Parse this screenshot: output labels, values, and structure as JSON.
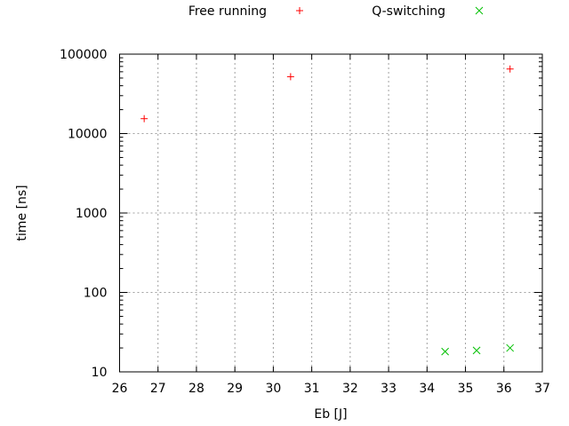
{
  "chart_data": {
    "type": "scatter",
    "title": "",
    "xlabel": "Eb [J]",
    "ylabel": "time [ns]",
    "xlim": [
      26,
      37
    ],
    "ylim": [
      10,
      100000
    ],
    "yscale": "log",
    "grid": true,
    "legend_placement": "top",
    "x_ticks": [
      "26",
      "27",
      "28",
      "29",
      "30",
      "31",
      "32",
      "33",
      "34",
      "35",
      "36",
      "37"
    ],
    "y_ticks": [
      "10",
      "100",
      "1000",
      "10000",
      "100000"
    ],
    "series": [
      {
        "name": "Free running",
        "marker": "plus",
        "color": "#ff0000",
        "points": [
          [
            26.64,
            15400
          ],
          [
            30.45,
            52000
          ],
          [
            36.16,
            65000
          ]
        ]
      },
      {
        "name": "Q-switching",
        "marker": "cross",
        "color": "#00c000",
        "points": [
          [
            34.47,
            18
          ],
          [
            35.29,
            18.6
          ],
          [
            36.16,
            20
          ]
        ]
      }
    ]
  }
}
